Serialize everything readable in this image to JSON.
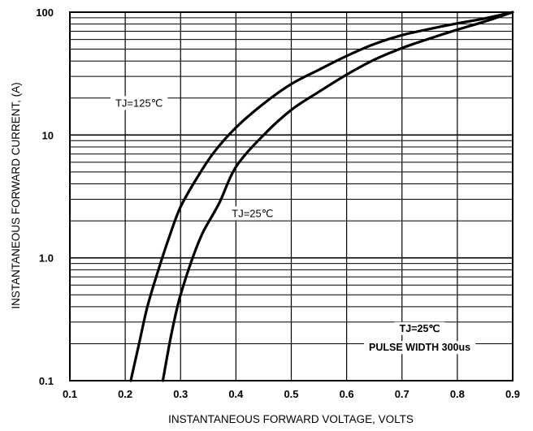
{
  "chart_data": {
    "type": "line",
    "title": "",
    "xlabel": "INSTANTANEOUS FORWARD VOLTAGE, VOLTS",
    "ylabel": "INSTANTANEOUS  FORWARD CURRENT, (A)",
    "xlim": [
      0.1,
      0.9
    ],
    "ylim": [
      0.1,
      100
    ],
    "yscale": "log",
    "grid": true,
    "x_ticks": [
      {
        "value": 0.1,
        "label": "0.1"
      },
      {
        "value": 0.2,
        "label": "0.2"
      },
      {
        "value": 0.3,
        "label": "0.3"
      },
      {
        "value": 0.4,
        "label": "0.4"
      },
      {
        "value": 0.5,
        "label": "0.5"
      },
      {
        "value": 0.6,
        "label": "0.6"
      },
      {
        "value": 0.7,
        "label": "0.7"
      },
      {
        "value": 0.8,
        "label": "0.8"
      },
      {
        "value": 0.9,
        "label": "0.9"
      }
    ],
    "y_ticks": [
      {
        "value": 0.1,
        "label": "0.1"
      },
      {
        "value": 1,
        "label": "1.0"
      },
      {
        "value": 10,
        "label": "10"
      },
      {
        "value": 100,
        "label": "100"
      }
    ],
    "series": [
      {
        "name": "TJ=125℃",
        "points": [
          [
            0.21,
            0.1
          ],
          [
            0.225,
            0.2
          ],
          [
            0.24,
            0.4
          ],
          [
            0.26,
            0.8
          ],
          [
            0.28,
            1.5
          ],
          [
            0.3,
            2.6
          ],
          [
            0.33,
            4.5
          ],
          [
            0.36,
            7.2
          ],
          [
            0.4,
            11.5
          ],
          [
            0.45,
            18
          ],
          [
            0.5,
            26
          ],
          [
            0.55,
            34
          ],
          [
            0.6,
            44
          ],
          [
            0.65,
            55
          ],
          [
            0.7,
            65
          ],
          [
            0.75,
            73
          ],
          [
            0.8,
            81
          ],
          [
            0.85,
            89
          ],
          [
            0.9,
            100
          ]
        ]
      },
      {
        "name": "TJ=25℃",
        "points": [
          [
            0.268,
            0.1
          ],
          [
            0.28,
            0.2
          ],
          [
            0.29,
            0.33
          ],
          [
            0.3,
            0.5
          ],
          [
            0.32,
            0.95
          ],
          [
            0.34,
            1.6
          ],
          [
            0.37,
            2.8
          ],
          [
            0.4,
            5.5
          ],
          [
            0.45,
            10
          ],
          [
            0.5,
            16
          ],
          [
            0.55,
            22.5
          ],
          [
            0.6,
            31
          ],
          [
            0.65,
            41
          ],
          [
            0.7,
            51
          ],
          [
            0.75,
            61
          ],
          [
            0.8,
            72
          ],
          [
            0.85,
            84
          ],
          [
            0.9,
            100
          ]
        ]
      }
    ],
    "annotations": [
      {
        "text": "TJ=125℃",
        "x": 0.225,
        "y": 17,
        "style": "normal"
      },
      {
        "text": "TJ=25℃",
        "x": 0.43,
        "y": 2.15,
        "style": "normal"
      },
      {
        "text": "TJ=25℃",
        "x": 0.732,
        "y": 0.25,
        "style": "bold"
      },
      {
        "text": "PULSE WIDTH 300us",
        "x": 0.732,
        "y": 0.175,
        "style": "bold"
      }
    ]
  }
}
